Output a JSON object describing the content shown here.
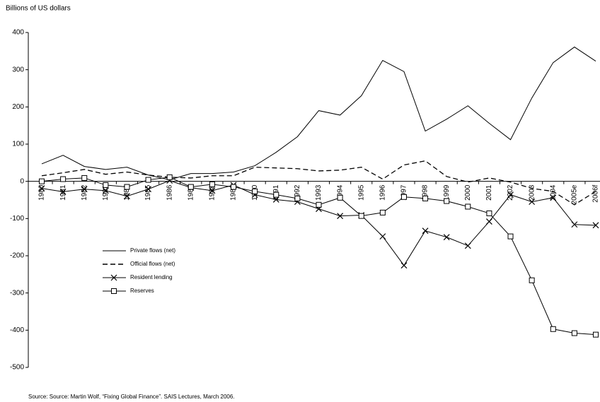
{
  "chart_data": {
    "type": "line",
    "y_axis_label": "Billions of US dollars",
    "source": "Source: Source: Martin Wolf, “Fixing Global Finance”. SAIS Lectures, March 2006.",
    "categories": [
      "1980",
      "1981",
      "1982",
      "1983",
      "1984",
      "1985",
      "1986",
      "1987",
      "1988",
      "1989",
      "1990",
      "1991",
      "1992",
      "1993",
      "1994",
      "1995",
      "1996",
      "1997",
      "1998",
      "1999",
      "2000",
      "2001",
      "2002",
      "2003",
      "2004",
      "2005e",
      "2006f"
    ],
    "ylim": [
      -500,
      400
    ],
    "yticks": [
      -500,
      -400,
      -300,
      -200,
      -100,
      0,
      100,
      200,
      300,
      400
    ],
    "series": [
      {
        "name": "Private flows (net)",
        "color": "#000000",
        "dash": false,
        "marker": "none",
        "values": [
          47,
          70,
          40,
          32,
          38,
          17,
          4,
          21,
          21,
          25,
          42,
          78,
          120,
          190,
          178,
          230,
          325,
          295,
          135,
          167,
          203,
          156,
          112,
          224,
          319,
          361,
          323
        ]
      },
      {
        "name": "Official flows (net)",
        "color": "#000000",
        "dash": true,
        "marker": "none",
        "values": [
          15,
          23,
          32,
          19,
          25,
          17,
          11,
          9,
          15,
          15,
          38,
          36,
          34,
          28,
          30,
          38,
          6,
          44,
          55,
          13,
          -2,
          9,
          -2,
          -19,
          -27,
          -63,
          -27
        ]
      },
      {
        "name": "Resident lending",
        "color": "#000000",
        "dash": false,
        "marker": "x",
        "values": [
          -19,
          -28,
          -21,
          -25,
          -40,
          -21,
          2,
          -17,
          -25,
          -10,
          -36,
          -49,
          -55,
          -74,
          -93,
          -91,
          -148,
          -226,
          -133,
          -150,
          -173,
          -108,
          -36,
          -55,
          -44,
          -116,
          -118
        ]
      },
      {
        "name": "Reserves",
        "color": "#000000",
        "dash": false,
        "marker": "square",
        "values": [
          0,
          6,
          9,
          -10,
          -15,
          4,
          11,
          -15,
          -8,
          -15,
          -27,
          -36,
          -46,
          -63,
          -44,
          -93,
          -84,
          -42,
          -46,
          -53,
          -68,
          -86,
          -148,
          -266,
          -397,
          -408,
          -412
        ]
      }
    ]
  }
}
